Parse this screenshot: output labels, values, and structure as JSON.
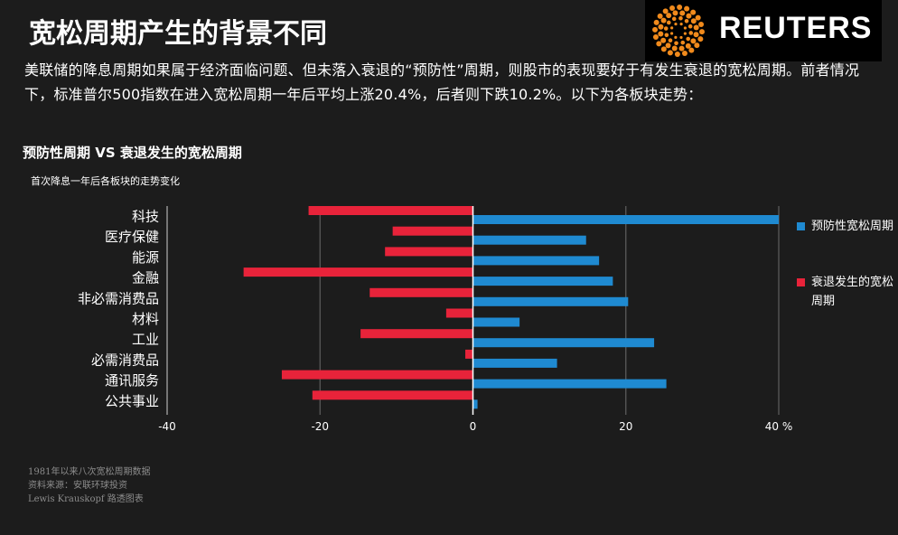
{
  "header": {
    "title": "宽松周期产生的背景不同",
    "logo_text": "REUTERS"
  },
  "intro": "美联储的降息周期如果属于经济面临问题、但未落入衰退的“预防性”周期，则股市的表现要好于有发生衰退的宽松周期。前者情况下，标准普尔500指数在进入宽松周期一年后平均上涨20.4%，后者则下跌10.2%。以下为各板块走势：",
  "chart_data": {
    "type": "bar",
    "orientation": "horizontal",
    "title": "预防性周期 VS 衰退发生的宽松周期",
    "subtitle": "首次降息一年后各板块的走势变化",
    "categories": [
      "科技",
      "医疗保健",
      "能源",
      "金融",
      "非必需消费品",
      "材料",
      "工业",
      "必需消费品",
      "通讯服务",
      "公共事业"
    ],
    "series": [
      {
        "name": "衰退发生的宽松周期",
        "color": "#e8233a",
        "values": [
          -21.5,
          -10.5,
          -11.5,
          -30,
          -13.5,
          -3.5,
          -14.7,
          -1,
          -25,
          -21
        ]
      },
      {
        "name": "预防性宽松周期",
        "color": "#1f8ad1",
        "values": [
          40,
          14.8,
          16.5,
          18.3,
          20.3,
          6.1,
          23.7,
          11,
          25.3,
          0.6
        ]
      }
    ],
    "xlim": [
      -40,
      40
    ],
    "xticks": [
      "-40",
      "-20",
      "0",
      "20",
      "40 %"
    ],
    "grid": true,
    "legend_position": "right"
  },
  "legend": {
    "items": [
      {
        "label": "预防性宽松周期",
        "color": "#1f8ad1"
      },
      {
        "label": "衰退发生的宽松周期",
        "color": "#e8233a"
      }
    ]
  },
  "notes": {
    "lines": [
      "1981年以来八次宽松周期数据",
      "资料来源：安联环球投资",
      "Lewis Krauskopf 路透图表"
    ]
  }
}
